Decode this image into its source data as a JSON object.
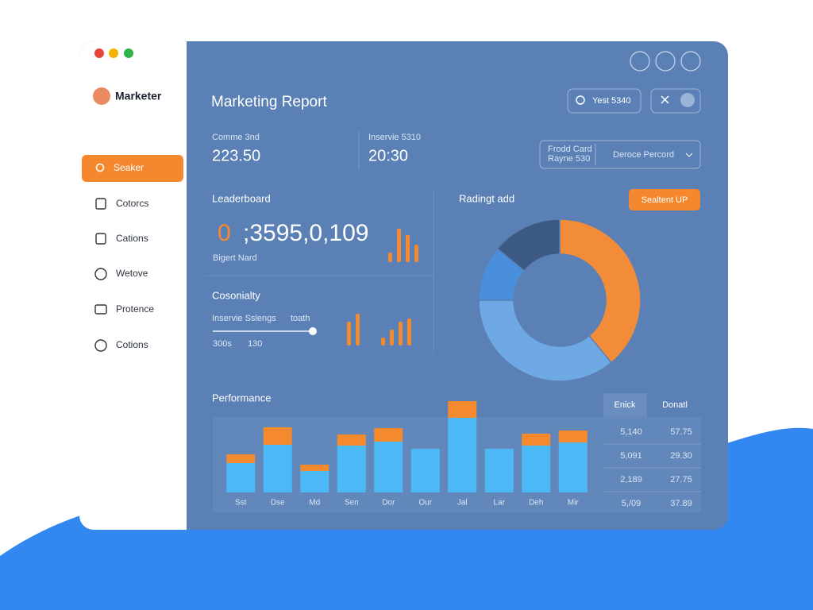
{
  "sidebar": {
    "brand": "Marketer",
    "nav": [
      "Seaker",
      "Cotorcs",
      "Cations",
      "Wetove",
      "Protence",
      "Cotions"
    ]
  },
  "header": {
    "title": "Marketing Report",
    "search": "Yest 5340"
  },
  "stats": [
    {
      "label": "Comme 3nd",
      "value": "223.50"
    },
    {
      "label": "Inservie 5310",
      "value": "20:30"
    }
  ],
  "filter": {
    "lines": [
      "Frodd Card",
      "Rayne 530"
    ],
    "select": "Deroce Percord"
  },
  "leaderboard": {
    "title": "Leaderboard",
    "prefix": "0",
    "value": ";3595,0,109",
    "caption": "Bigert Nard",
    "bars": [
      12,
      42,
      34,
      22
    ]
  },
  "cosonialty": {
    "title": "Cosonialty",
    "slider_label": "Inservie Sslengs",
    "slider_note": "toath",
    "min_label": "300s",
    "max_label": "130",
    "bars_left": [
      30,
      40
    ],
    "bars_right": [
      10,
      20,
      30,
      34
    ]
  },
  "donut": {
    "title": "Radingt add",
    "button": "Sealtent UP",
    "values": [
      39,
      36,
      11,
      14
    ],
    "colors": [
      "#f28c38",
      "#6ea9e6",
      "#4a8fdc",
      "#3d5a84"
    ]
  },
  "performance": {
    "title": "Performance",
    "categories": [
      "Sst",
      "Dse",
      "Md",
      "Sen",
      "Dor",
      "Our",
      "Jal",
      "Lar",
      "Deh",
      "Mir"
    ],
    "series": [
      {
        "color": "#4cb9f6",
        "values": [
          37,
          60,
          27,
          59,
          64,
          55,
          94,
          55,
          59,
          63
        ]
      },
      {
        "color": "#f5892e",
        "values": [
          11,
          22,
          8,
          14,
          17,
          0,
          21,
          0,
          15,
          15
        ]
      }
    ],
    "ylim": [
      0,
      120
    ]
  },
  "table": {
    "header": [
      "Enick",
      "Donatl"
    ],
    "rows": [
      [
        "5,140",
        "57.75"
      ],
      [
        "5,091",
        "29.30"
      ],
      [
        "2,189",
        "27.75"
      ],
      [
        "5,/09",
        "37.89"
      ]
    ]
  }
}
